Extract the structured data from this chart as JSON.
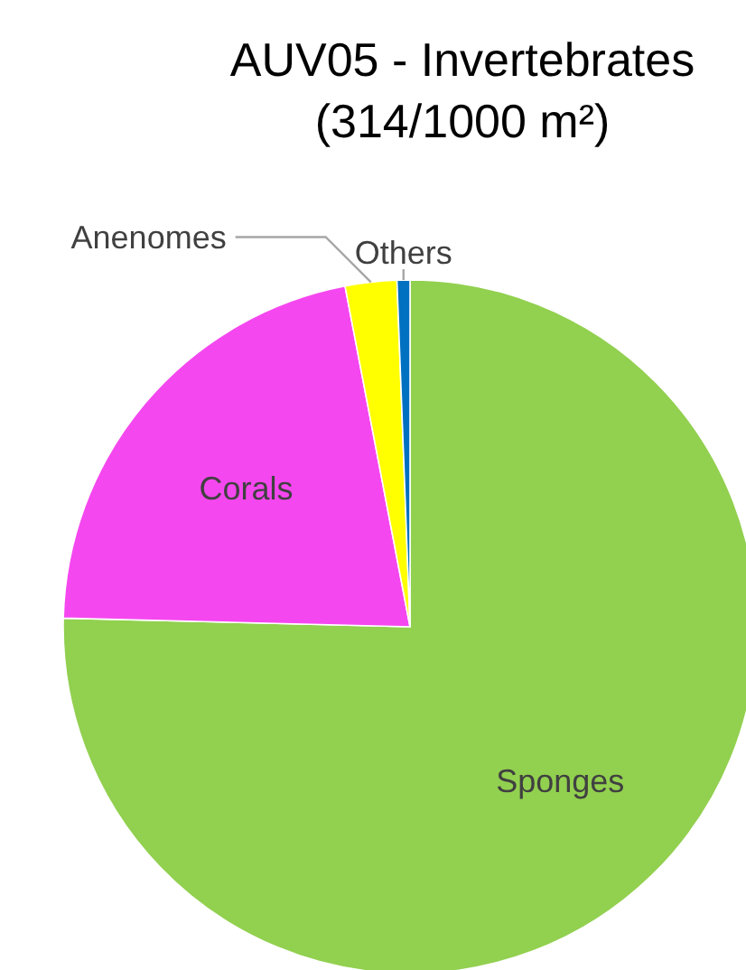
{
  "chart_data": {
    "type": "pie",
    "title": "AUV05 - Invertebrates (314/1000 m²)",
    "categories": [
      "Sponges",
      "Corals",
      "Anenomes",
      "Others"
    ],
    "values": [
      75.4,
      21.6,
      2.4,
      0.6
    ],
    "colors": [
      "#92d050",
      "#f547ef",
      "#ffff00",
      "#0070c0"
    ],
    "legend": false
  }
}
